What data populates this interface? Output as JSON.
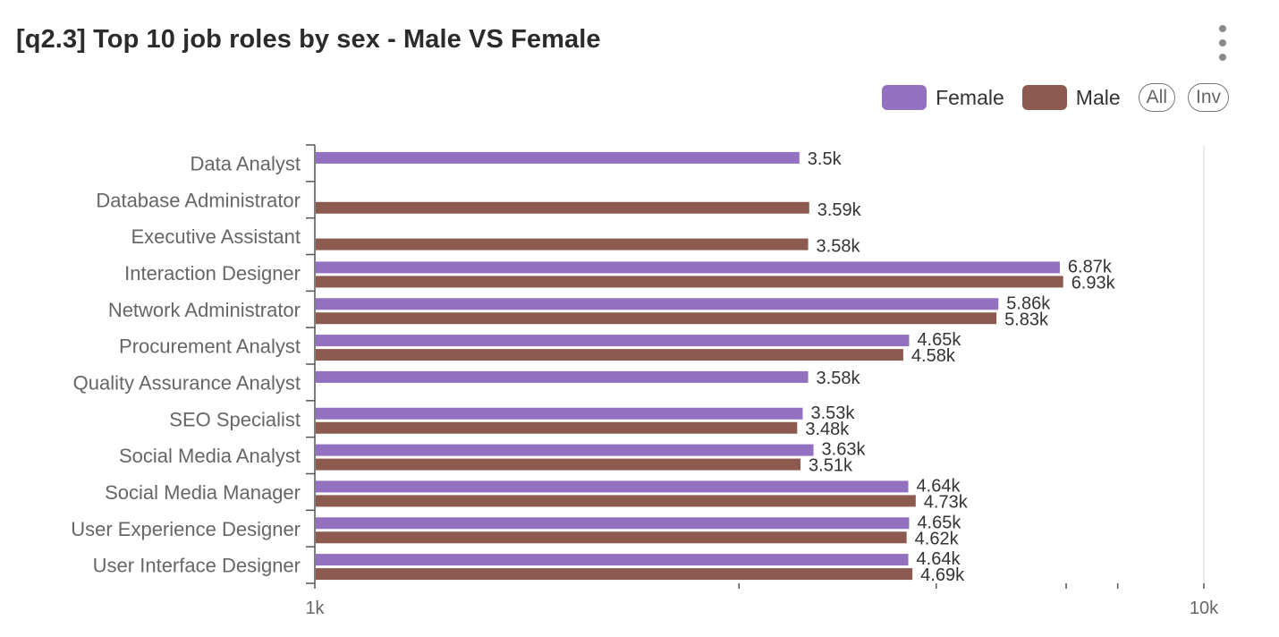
{
  "card": {
    "title": "[q2.3] Top 10 job roles by sex - Male VS Female",
    "menu_icon": "kebab-menu-icon"
  },
  "legend": {
    "items": [
      {
        "label": "Female",
        "color": "#9370c0"
      },
      {
        "label": "Male",
        "color": "#8c5a4f"
      }
    ],
    "all_label": "All",
    "inv_label": "Inv"
  },
  "chart_data": {
    "type": "bar",
    "orientation": "horizontal",
    "x_scale": "log",
    "xlim": [
      1000,
      10000
    ],
    "x_tick_labels": [
      "1k",
      "10k"
    ],
    "categories": [
      "Data Analyst",
      "Database Administrator",
      "Executive Assistant",
      "Interaction Designer",
      "Network Administrator",
      "Procurement Analyst",
      "Quality Assurance Analyst",
      "SEO Specialist",
      "Social Media Analyst",
      "Social Media Manager",
      "User Experience Designer",
      "User Interface Designer"
    ],
    "series": [
      {
        "name": "Female",
        "color": "#9370c0",
        "values": [
          3500,
          null,
          null,
          6870,
          5860,
          4650,
          3580,
          3530,
          3630,
          4640,
          4650,
          4640
        ],
        "labels": [
          "3.5k",
          "",
          "",
          "6.87k",
          "5.86k",
          "4.65k",
          "3.58k",
          "3.53k",
          "3.63k",
          "4.64k",
          "4.65k",
          "4.64k"
        ]
      },
      {
        "name": "Male",
        "color": "#8c5a4f",
        "values": [
          null,
          3590,
          3580,
          6930,
          5830,
          4580,
          null,
          3480,
          3510,
          4730,
          4620,
          4690
        ],
        "labels": [
          "",
          "3.59k",
          "3.58k",
          "6.93k",
          "5.83k",
          "4.58k",
          "",
          "3.48k",
          "3.51k",
          "4.73k",
          "4.62k",
          "4.69k"
        ]
      }
    ],
    "legend_position": "top-right",
    "grid": false
  }
}
